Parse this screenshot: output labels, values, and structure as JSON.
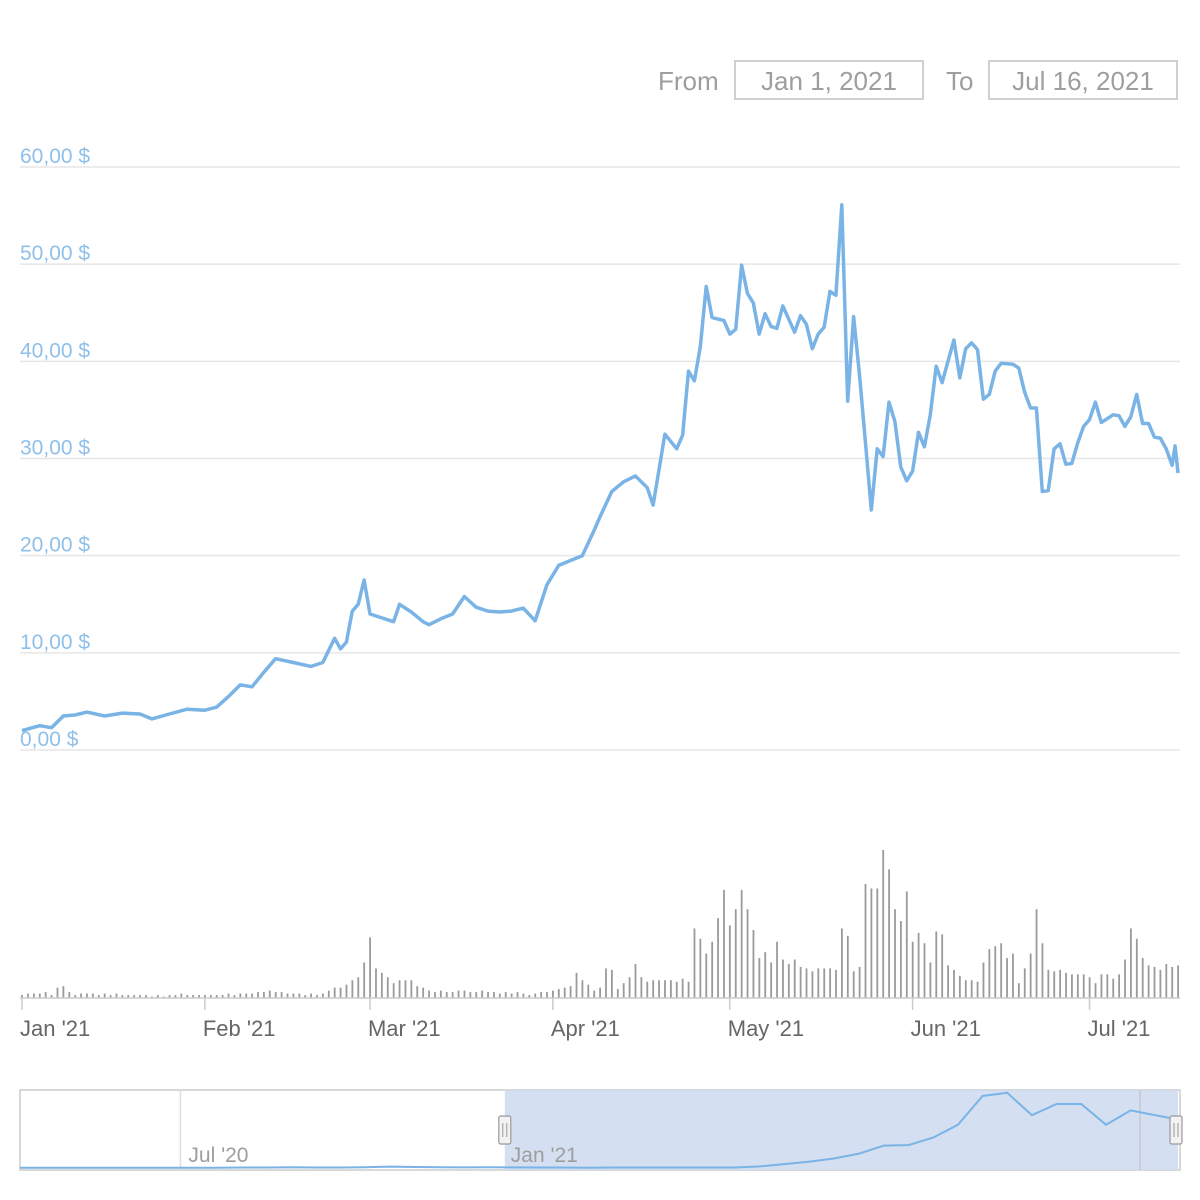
{
  "range_selector": {
    "from_label": "From",
    "from_value": "Jan 1, 2021",
    "to_label": "To",
    "to_value": "Jul 16, 2021"
  },
  "colors": {
    "price_line": "#7ab3e6",
    "axis_text_price": "#8fc0ea",
    "volume_bar": "#9a9a9a",
    "grid": "#e6e6e6",
    "navigator_fill": "#ccdaee",
    "navigator_text": "#9e9e9e"
  },
  "chart_data": [
    {
      "type": "line",
      "title": "",
      "xlabel": "",
      "ylabel": "",
      "ylim": [
        0,
        60
      ],
      "y_tick_labels": [
        "0,00 $",
        "10,00 $",
        "20,00 $",
        "30,00 $",
        "40,00 $",
        "50,00 $",
        "60,00 $"
      ],
      "x_tick_labels": [
        {
          "label": "Jan '21",
          "date": "2021-01-01"
        },
        {
          "label": "Feb '21",
          "date": "2021-02-01"
        },
        {
          "label": "Mar '21",
          "date": "2021-03-01"
        },
        {
          "label": "Apr '21",
          "date": "2021-04-01"
        },
        {
          "label": "May '21",
          "date": "2021-05-01"
        },
        {
          "label": "Jun '21",
          "date": "2021-06-01"
        },
        {
          "label": "Jul '21",
          "date": "2021-07-01"
        }
      ],
      "xlim": [
        "2021-01-01",
        "2021-07-16"
      ],
      "grid": true,
      "series": [
        {
          "points": [
            [
              "2021-01-01",
              2.0
            ],
            [
              "2021-01-04",
              2.5
            ],
            [
              "2021-01-06",
              2.3
            ],
            [
              "2021-01-08",
              3.5
            ],
            [
              "2021-01-10",
              3.6
            ],
            [
              "2021-01-12",
              3.9
            ],
            [
              "2021-01-15",
              3.5
            ],
            [
              "2021-01-18",
              3.8
            ],
            [
              "2021-01-21",
              3.7
            ],
            [
              "2021-01-23",
              3.2
            ],
            [
              "2021-01-26",
              3.7
            ],
            [
              "2021-01-29",
              4.2
            ],
            [
              "2021-02-01",
              4.1
            ],
            [
              "2021-02-03",
              4.4
            ],
            [
              "2021-02-05",
              5.5
            ],
            [
              "2021-02-07",
              6.7
            ],
            [
              "2021-02-09",
              6.5
            ],
            [
              "2021-02-11",
              8.0
            ],
            [
              "2021-02-13",
              9.4
            ],
            [
              "2021-02-16",
              9.0
            ],
            [
              "2021-02-19",
              8.6
            ],
            [
              "2021-02-21",
              9.0
            ],
            [
              "2021-02-23",
              11.5
            ],
            [
              "2021-02-24",
              10.4
            ],
            [
              "2021-02-25",
              11.1
            ],
            [
              "2021-02-26",
              14.3
            ],
            [
              "2021-02-27",
              15.0
            ],
            [
              "2021-02-28",
              17.5
            ],
            [
              "2021-03-01",
              14.0
            ],
            [
              "2021-03-03",
              13.6
            ],
            [
              "2021-03-05",
              13.2
            ],
            [
              "2021-03-06",
              15.0
            ],
            [
              "2021-03-08",
              14.2
            ],
            [
              "2021-03-10",
              13.2
            ],
            [
              "2021-03-11",
              12.9
            ],
            [
              "2021-03-13",
              13.5
            ],
            [
              "2021-03-15",
              14.0
            ],
            [
              "2021-03-17",
              15.8
            ],
            [
              "2021-03-19",
              14.7
            ],
            [
              "2021-03-21",
              14.3
            ],
            [
              "2021-03-23",
              14.2
            ],
            [
              "2021-03-25",
              14.3
            ],
            [
              "2021-03-27",
              14.6
            ],
            [
              "2021-03-29",
              13.3
            ],
            [
              "2021-03-31",
              17.0
            ],
            [
              "2021-04-02",
              19.0
            ],
            [
              "2021-04-04",
              19.5
            ],
            [
              "2021-04-06",
              20.0
            ],
            [
              "2021-04-08",
              22.6
            ],
            [
              "2021-04-09",
              24.0
            ],
            [
              "2021-04-11",
              26.6
            ],
            [
              "2021-04-13",
              27.6
            ],
            [
              "2021-04-15",
              28.2
            ],
            [
              "2021-04-17",
              27.0
            ],
            [
              "2021-04-18",
              25.2
            ],
            [
              "2021-04-20",
              32.5
            ],
            [
              "2021-04-22",
              31.0
            ],
            [
              "2021-04-23",
              32.4
            ],
            [
              "2021-04-24",
              39.0
            ],
            [
              "2021-04-25",
              38.0
            ],
            [
              "2021-04-26",
              41.5
            ],
            [
              "2021-04-27",
              47.7
            ],
            [
              "2021-04-28",
              44.5
            ],
            [
              "2021-04-30",
              44.2
            ],
            [
              "2021-05-01",
              42.8
            ],
            [
              "2021-05-02",
              43.3
            ],
            [
              "2021-05-03",
              49.9
            ],
            [
              "2021-05-04",
              47.0
            ],
            [
              "2021-05-05",
              46.0
            ],
            [
              "2021-05-06",
              42.8
            ],
            [
              "2021-05-07",
              44.9
            ],
            [
              "2021-05-08",
              43.6
            ],
            [
              "2021-05-09",
              43.4
            ],
            [
              "2021-05-10",
              45.7
            ],
            [
              "2021-05-12",
              43.0
            ],
            [
              "2021-05-13",
              44.7
            ],
            [
              "2021-05-14",
              43.8
            ],
            [
              "2021-05-15",
              41.3
            ],
            [
              "2021-05-16",
              42.8
            ],
            [
              "2021-05-17",
              43.5
            ],
            [
              "2021-05-18",
              47.2
            ],
            [
              "2021-05-19",
              46.8
            ],
            [
              "2021-05-20",
              56.1
            ],
            [
              "2021-05-21",
              35.9
            ],
            [
              "2021-05-22",
              44.6
            ],
            [
              "2021-05-23",
              38.6
            ],
            [
              "2021-05-24",
              31.7
            ],
            [
              "2021-05-25",
              24.7
            ],
            [
              "2021-05-26",
              31.0
            ],
            [
              "2021-05-27",
              30.2
            ],
            [
              "2021-05-28",
              35.8
            ],
            [
              "2021-05-29",
              33.8
            ],
            [
              "2021-05-30",
              29.1
            ],
            [
              "2021-05-31",
              27.7
            ],
            [
              "2021-06-01",
              28.7
            ],
            [
              "2021-06-02",
              32.7
            ],
            [
              "2021-06-03",
              31.2
            ],
            [
              "2021-06-04",
              34.5
            ],
            [
              "2021-06-05",
              39.5
            ],
            [
              "2021-06-06",
              37.8
            ],
            [
              "2021-06-07",
              40.0
            ],
            [
              "2021-06-08",
              42.2
            ],
            [
              "2021-06-09",
              38.3
            ],
            [
              "2021-06-10",
              41.3
            ],
            [
              "2021-06-11",
              41.9
            ],
            [
              "2021-06-12",
              41.2
            ],
            [
              "2021-06-13",
              36.1
            ],
            [
              "2021-06-14",
              36.6
            ],
            [
              "2021-06-15",
              39.0
            ],
            [
              "2021-06-16",
              39.8
            ],
            [
              "2021-06-18",
              39.7
            ],
            [
              "2021-06-19",
              39.3
            ],
            [
              "2021-06-20",
              36.8
            ],
            [
              "2021-06-21",
              35.2
            ],
            [
              "2021-06-22",
              35.2
            ],
            [
              "2021-06-23",
              26.6
            ],
            [
              "2021-06-24",
              26.7
            ],
            [
              "2021-06-25",
              31.0
            ],
            [
              "2021-06-26",
              31.5
            ],
            [
              "2021-06-27",
              29.4
            ],
            [
              "2021-06-28",
              29.5
            ],
            [
              "2021-06-29",
              31.6
            ],
            [
              "2021-06-30",
              33.3
            ],
            [
              "2021-07-01",
              34.0
            ],
            [
              "2021-07-02",
              35.8
            ],
            [
              "2021-07-03",
              33.7
            ],
            [
              "2021-07-04",
              34.1
            ],
            [
              "2021-07-05",
              34.5
            ],
            [
              "2021-07-06",
              34.4
            ],
            [
              "2021-07-07",
              33.3
            ],
            [
              "2021-07-08",
              34.3
            ],
            [
              "2021-07-09",
              36.6
            ],
            [
              "2021-07-10",
              33.6
            ],
            [
              "2021-07-11",
              33.6
            ],
            [
              "2021-07-12",
              32.2
            ],
            [
              "2021-07-13",
              32.1
            ],
            [
              "2021-07-14",
              31.0
            ],
            [
              "2021-07-15",
              29.3
            ],
            [
              "2021-07-15.5",
              31.3
            ],
            [
              "2021-07-16",
              28.5
            ]
          ]
        }
      ]
    },
    {
      "type": "bar",
      "title": "",
      "note": "trading volume bars (no value axis printed); values are relative to the tallest bar = 1.0",
      "x_start": "2021-01-01",
      "interval_days": 1,
      "values": [
        0.02,
        0.03,
        0.03,
        0.03,
        0.04,
        0.02,
        0.07,
        0.08,
        0.04,
        0.02,
        0.03,
        0.03,
        0.03,
        0.02,
        0.03,
        0.02,
        0.03,
        0.02,
        0.02,
        0.02,
        0.02,
        0.02,
        0.01,
        0.02,
        0.01,
        0.02,
        0.02,
        0.03,
        0.02,
        0.02,
        0.02,
        0.02,
        0.02,
        0.02,
        0.02,
        0.03,
        0.02,
        0.03,
        0.03,
        0.03,
        0.04,
        0.04,
        0.05,
        0.04,
        0.04,
        0.03,
        0.03,
        0.03,
        0.02,
        0.03,
        0.02,
        0.03,
        0.05,
        0.07,
        0.07,
        0.09,
        0.12,
        0.14,
        0.24,
        0.41,
        0.2,
        0.17,
        0.14,
        0.1,
        0.12,
        0.12,
        0.12,
        0.08,
        0.07,
        0.05,
        0.04,
        0.05,
        0.04,
        0.04,
        0.05,
        0.05,
        0.04,
        0.04,
        0.05,
        0.04,
        0.04,
        0.03,
        0.04,
        0.03,
        0.04,
        0.03,
        0.02,
        0.03,
        0.04,
        0.04,
        0.05,
        0.06,
        0.07,
        0.08,
        0.17,
        0.12,
        0.09,
        0.05,
        0.07,
        0.2,
        0.19,
        0.06,
        0.1,
        0.14,
        0.23,
        0.14,
        0.11,
        0.12,
        0.12,
        0.12,
        0.12,
        0.11,
        0.13,
        0.11,
        0.47,
        0.4,
        0.3,
        0.38,
        0.54,
        0.73,
        0.49,
        0.6,
        0.73,
        0.6,
        0.46,
        0.27,
        0.31,
        0.24,
        0.38,
        0.26,
        0.23,
        0.26,
        0.21,
        0.2,
        0.18,
        0.2,
        0.2,
        0.2,
        0.19,
        0.47,
        0.42,
        0.18,
        0.21,
        0.77,
        0.74,
        0.74,
        1.0,
        0.87,
        0.6,
        0.52,
        0.72,
        0.38,
        0.44,
        0.37,
        0.24,
        0.45,
        0.43,
        0.22,
        0.19,
        0.15,
        0.12,
        0.12,
        0.11,
        0.24,
        0.33,
        0.35,
        0.37,
        0.27,
        0.3,
        0.1,
        0.2,
        0.3,
        0.6,
        0.37,
        0.19,
        0.18,
        0.19,
        0.17,
        0.16,
        0.16,
        0.16,
        0.14,
        0.1,
        0.16,
        0.16,
        0.13,
        0.16,
        0.26,
        0.47,
        0.4,
        0.27,
        0.22,
        0.21,
        0.19,
        0.23,
        0.21,
        0.22,
        0.24,
        0.21,
        0.19,
        0.16,
        0.2,
        0.16,
        0.16,
        0.21,
        0.17,
        0.13,
        0.24,
        0.23,
        0.17,
        0.09,
        0.09,
        0.07,
        0.14,
        0.14
      ]
    },
    {
      "type": "area",
      "title": "",
      "note": "navigator overview chart; selected window highlighted from Jan '21 to Jul '21",
      "x_tick_labels": [
        "Jul '20",
        "Jan '21"
      ],
      "selected_range": [
        "2021-01-01",
        "2021-07-16"
      ],
      "x_start": "2020-04-01",
      "interval_weeks": 2,
      "values": [
        0.2,
        0.2,
        0.2,
        0.2,
        0.2,
        0.2,
        0.2,
        0.2,
        0.2,
        0.3,
        0.3,
        0.5,
        0.3,
        0.3,
        0.5,
        0.9,
        0.6,
        0.5,
        0.4,
        0.5,
        0.4,
        0.3,
        0.3,
        0.2,
        0.3,
        0.3,
        0.3,
        0.3,
        0.3,
        0.3,
        1.0,
        2.5,
        4.0,
        6.0,
        9.0,
        14.0,
        14.3,
        19.0,
        27.0,
        45.0,
        47.0,
        33.0,
        40.0,
        40.0,
        27.0,
        36.0,
        33.0,
        30.0
      ]
    }
  ]
}
